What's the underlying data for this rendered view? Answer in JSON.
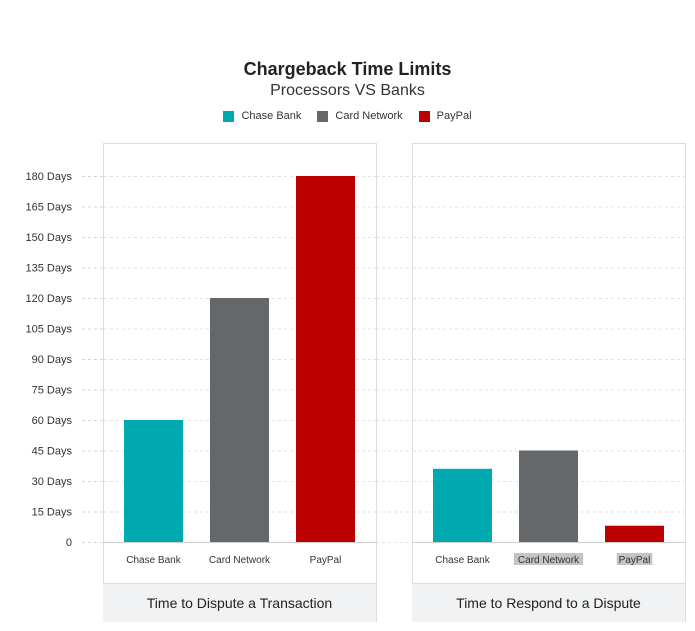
{
  "chart_data": {
    "type": "bar",
    "title": "Chargeback Time Limits",
    "subtitle": "Processors VS Banks",
    "legend": {
      "placement": "top-center",
      "entries": [
        {
          "label": "Chase Bank",
          "color": "#00a8b0"
        },
        {
          "label": "Card Network",
          "color": "#64686b"
        },
        {
          "label": "PayPal",
          "color": "#bb0000"
        }
      ]
    },
    "ylim": [
      0,
      180
    ],
    "yticks": [
      "0",
      "15 Days",
      "30 Days",
      "45 Days",
      "60 Days",
      "75 Days",
      "90 Days",
      "105 Days",
      "120 Days",
      "135 Days",
      "150 Days",
      "165 Days",
      "180 Days"
    ],
    "grid": true,
    "panels": [
      {
        "caption": "Time to Dispute a Transaction",
        "categories": [
          "Chase Bank",
          "Card Network",
          "PayPal"
        ],
        "values": [
          60,
          120,
          180
        ],
        "colors": [
          "#00a8b0",
          "#64686b",
          "#bb0000"
        ],
        "highlight_labels": [
          false,
          false,
          false
        ]
      },
      {
        "caption": "Time to Respond to a Dispute",
        "categories": [
          "Chase Bank",
          "Card Network",
          "PayPal"
        ],
        "values": [
          36,
          45,
          8
        ],
        "colors": [
          "#00a8b0",
          "#64686b",
          "#bb0000"
        ],
        "highlight_labels": [
          false,
          true,
          true
        ]
      }
    ]
  }
}
